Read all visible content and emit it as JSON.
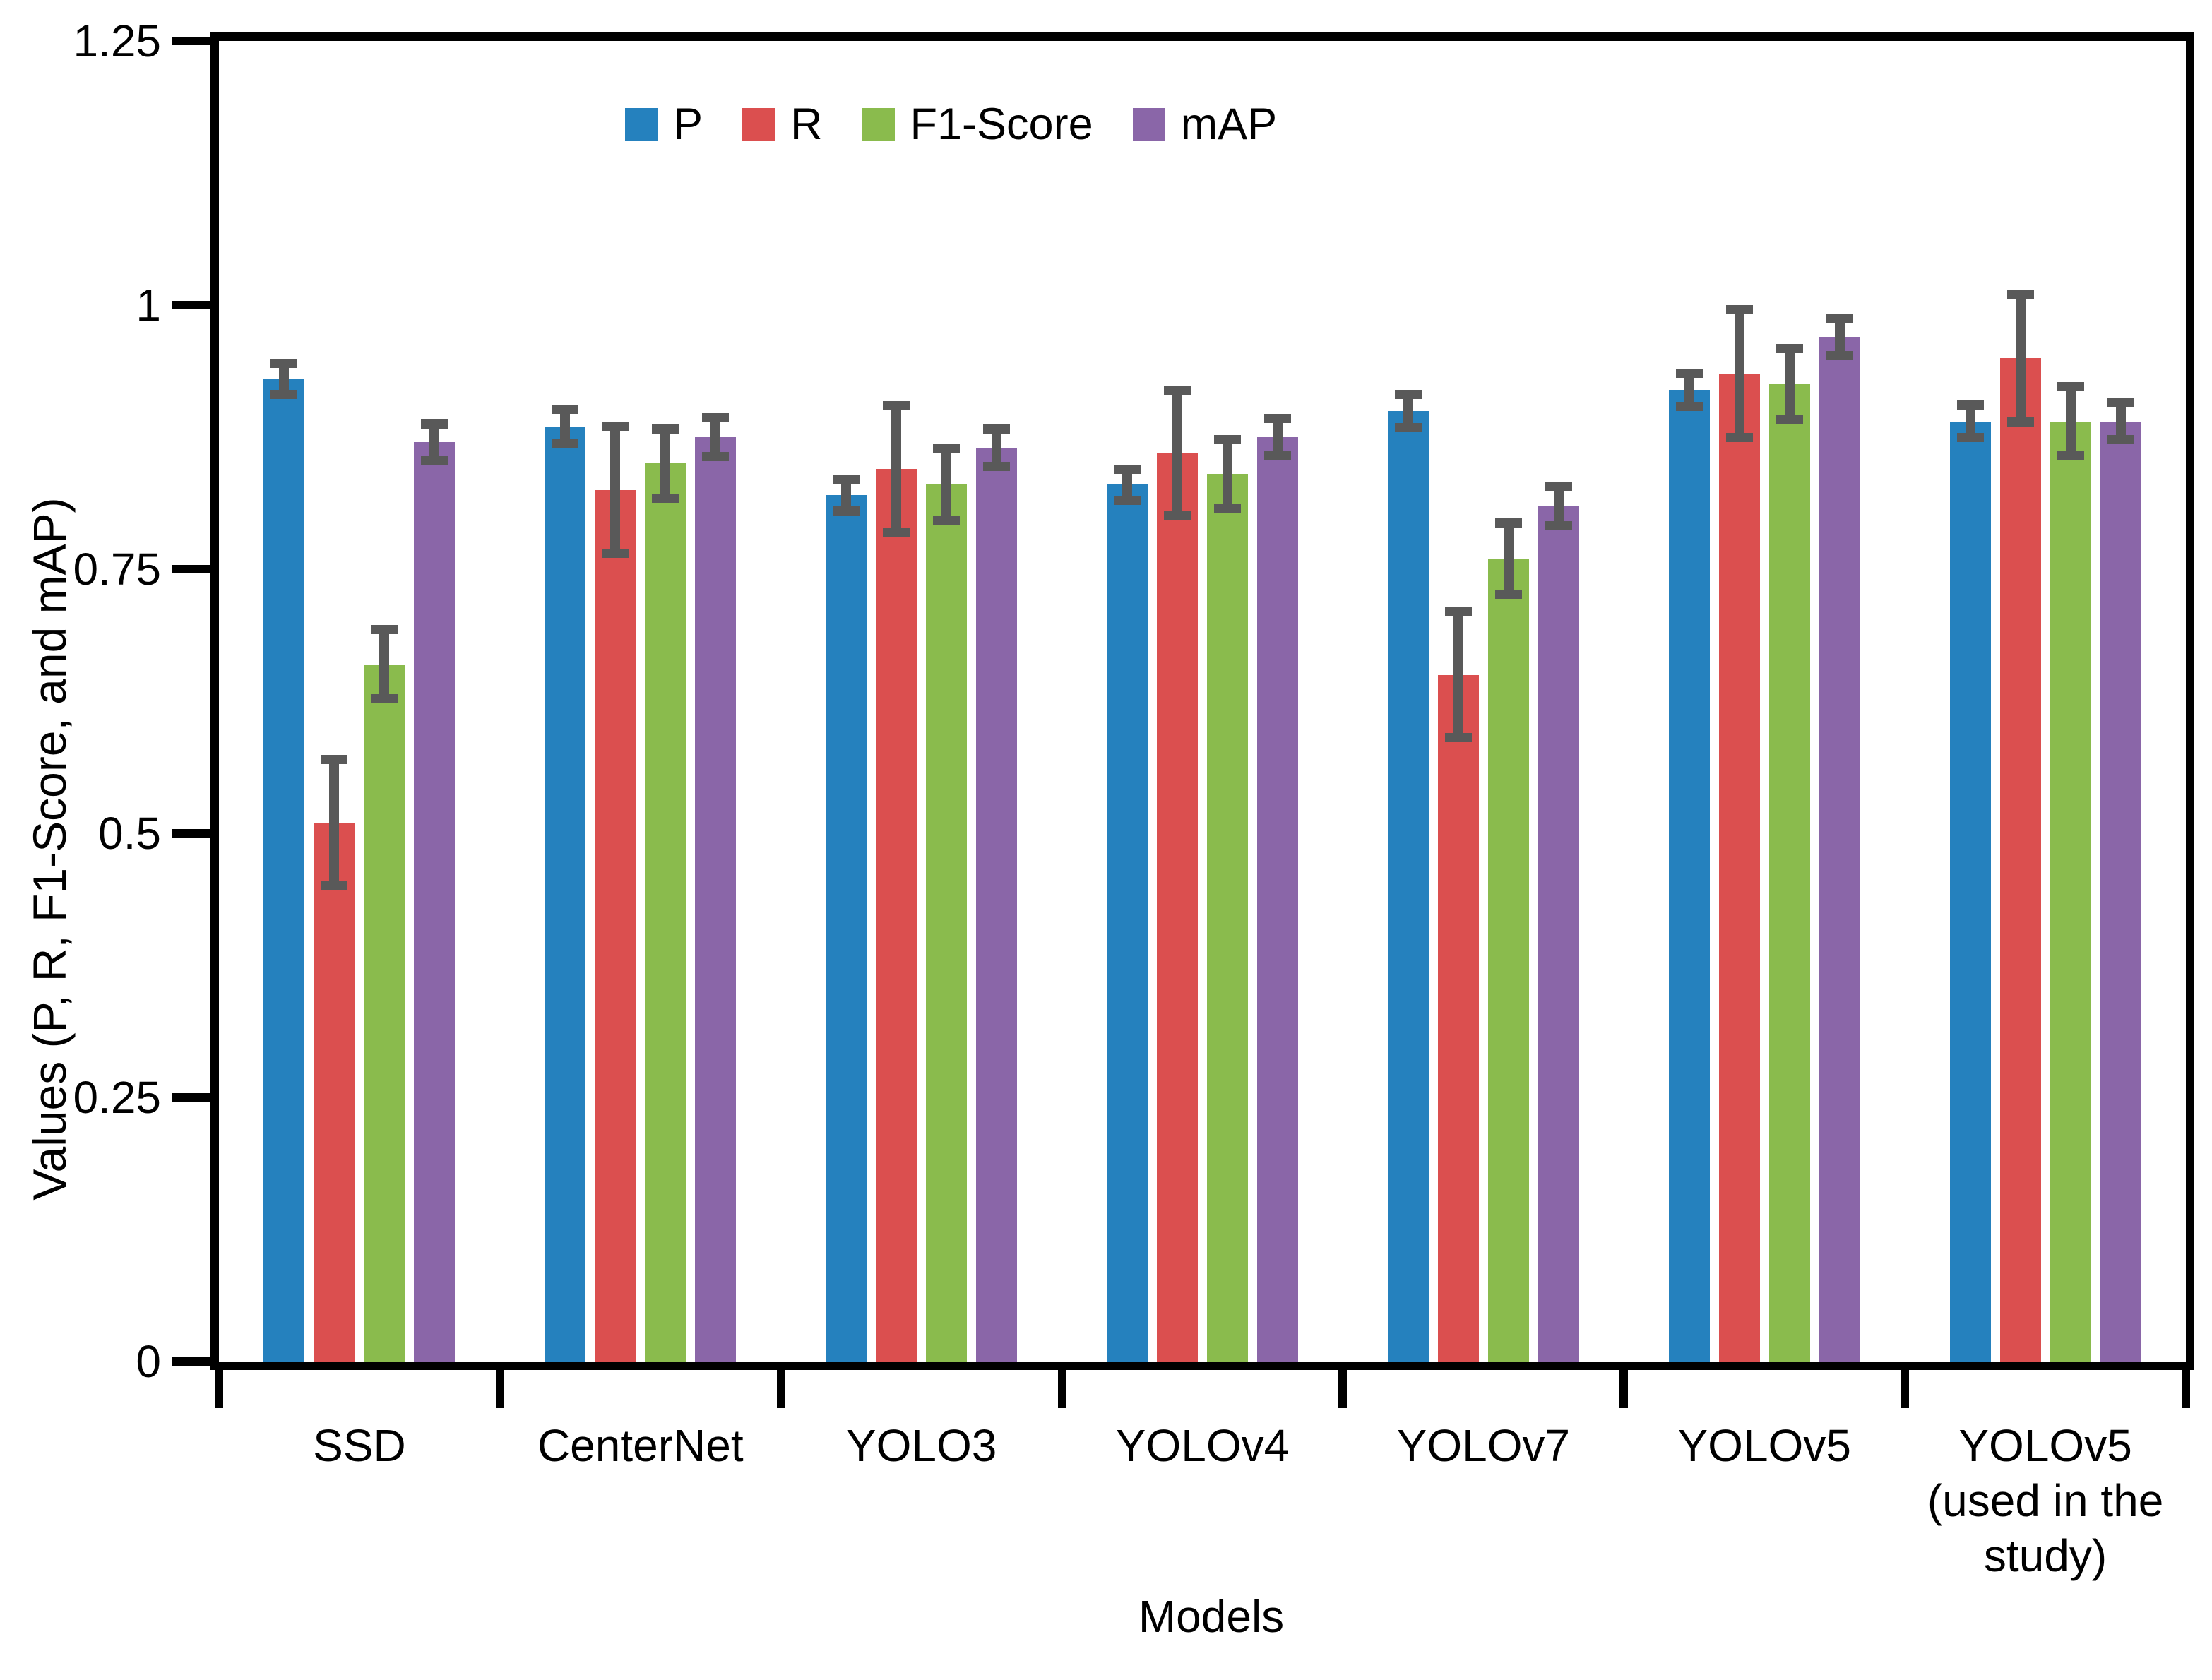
{
  "figure": {
    "background": "#ffffff",
    "frame_color": "#000000",
    "error_bar_color": "#595959"
  },
  "legend": {
    "position": "top-inside",
    "items": [
      {
        "label": "P",
        "color": "#2581BE"
      },
      {
        "label": "R",
        "color": "#DB4F4F"
      },
      {
        "label": "F1-Score",
        "color": "#8ABB4D"
      },
      {
        "label": "mAP",
        "color": "#8A66A8"
      }
    ]
  },
  "axes": {
    "y_title": "Values (P, R, F1-Score, and mAP)",
    "x_title": "Models",
    "y_tick_labels": [
      "0",
      "0.25",
      "0.5",
      "0.75",
      "1",
      "1.25"
    ],
    "y_min": 0,
    "y_max": 1.25
  },
  "chart_data": {
    "type": "bar",
    "title": "",
    "xlabel": "Models",
    "ylabel": "Values (P, R, F1-Score, and mAP)",
    "ylim": [
      0,
      1.25
    ],
    "y_tick_step": 0.25,
    "grid": false,
    "legend_position": "top-inside",
    "error_bars": true,
    "error_bar_color": "#595959",
    "categories": [
      "SSD",
      "CenterNet",
      "YOLO3",
      "YOLOv4",
      "YOLOv7",
      "YOLOv5",
      "YOLOv5 (used in the study)"
    ],
    "category_label_lines": [
      [
        "SSD"
      ],
      [
        "CenterNet"
      ],
      [
        "YOLO3"
      ],
      [
        "YOLOv4"
      ],
      [
        "YOLOv7"
      ],
      [
        "YOLOv5"
      ],
      [
        "YOLOv5",
        "(used in the",
        "study)"
      ]
    ],
    "series": [
      {
        "name": "P",
        "color": "#2581BE",
        "values": [
          0.93,
          0.885,
          0.82,
          0.83,
          0.9,
          0.92,
          0.89
        ],
        "errors": [
          0.015,
          0.017,
          0.015,
          0.015,
          0.016,
          0.016,
          0.016
        ]
      },
      {
        "name": "R",
        "color": "#DB4F4F",
        "values": [
          0.51,
          0.825,
          0.845,
          0.86,
          0.65,
          0.935,
          0.95
        ],
        "errors": [
          0.06,
          0.06,
          0.06,
          0.06,
          0.06,
          0.061,
          0.061
        ]
      },
      {
        "name": "F1-Score",
        "color": "#8ABB4D",
        "values": [
          0.66,
          0.85,
          0.83,
          0.84,
          0.76,
          0.925,
          0.89
        ],
        "errors": [
          0.033,
          0.033,
          0.034,
          0.033,
          0.034,
          0.034,
          0.033
        ]
      },
      {
        "name": "mAP",
        "color": "#8A66A8",
        "values": [
          0.87,
          0.875,
          0.865,
          0.875,
          0.81,
          0.97,
          0.89
        ],
        "errors": [
          0.018,
          0.019,
          0.018,
          0.018,
          0.019,
          0.018,
          0.018
        ]
      }
    ]
  }
}
